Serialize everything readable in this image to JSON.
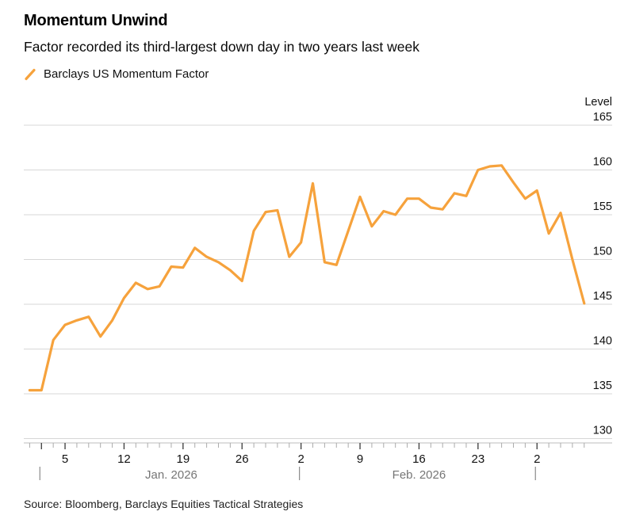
{
  "header": {
    "title": "Momentum Unwind",
    "subtitle": "Factor recorded its third-largest down day in two years last week",
    "legend": {
      "icon": "slash-icon",
      "label": "Barclays US Momentum Factor",
      "color": "#F6A23C"
    }
  },
  "source": "Source: Bloomberg, Barclays Equities Tactical Strategies",
  "colors": {
    "line": "#F6A23C",
    "gridline": "#D7D7D7",
    "axis_line": "#BDBDBD",
    "minor_tick": "#ABABAB",
    "major_tick": "#3A3A3A",
    "tick_label": "#111111",
    "month_label": "#767676",
    "month_separator": "#8A8A8A"
  },
  "chart_data": {
    "type": "line",
    "title": "Momentum Unwind",
    "subtitle": "Factor recorded its third-largest down day in two years last week",
    "ylabel": "Level",
    "ylim": [
      130,
      165
    ],
    "yticks": [
      165,
      160,
      155,
      150,
      145,
      140,
      135,
      130
    ],
    "grid": true,
    "legend_position": "top-left",
    "x_axis": {
      "unit": "weekdays, evenly spaced",
      "major_ticks": [
        {
          "index": 3,
          "label": "5"
        },
        {
          "index": 8,
          "label": "12"
        },
        {
          "index": 13,
          "label": "19"
        },
        {
          "index": 18,
          "label": "26"
        },
        {
          "index": 23,
          "label": "2"
        },
        {
          "index": 28,
          "label": "9"
        },
        {
          "index": 33,
          "label": "16"
        },
        {
          "index": 38,
          "label": "23"
        },
        {
          "index": 43,
          "label": "2"
        }
      ],
      "extra_major_tick_indices": [
        1
      ],
      "month_separators": [
        {
          "index": 1,
          "label": "Jan. 2026"
        },
        {
          "index": 23,
          "label": "Feb. 2026"
        },
        {
          "index": 43,
          "label": ""
        }
      ]
    },
    "series": [
      {
        "name": "Barclays US Momentum Factor",
        "color": "#F6A23C",
        "dates": [
          "Dec 31",
          "Jan 1",
          "Jan 2",
          "Jan 5",
          "Jan 6",
          "Jan 7",
          "Jan 8",
          "Jan 9",
          "Jan 12",
          "Jan 13",
          "Jan 14",
          "Jan 15",
          "Jan 16",
          "Jan 19",
          "Jan 20",
          "Jan 21",
          "Jan 22",
          "Jan 23",
          "Jan 26",
          "Jan 27",
          "Jan 28",
          "Jan 29",
          "Jan 30",
          "Feb 2",
          "Feb 3",
          "Feb 4",
          "Feb 5",
          "Feb 6",
          "Feb 9",
          "Feb 10",
          "Feb 11",
          "Feb 12",
          "Feb 13",
          "Feb 16",
          "Feb 17",
          "Feb 18",
          "Feb 19",
          "Feb 20",
          "Feb 23",
          "Feb 24",
          "Feb 25",
          "Feb 26",
          "Feb 27",
          "Mar 2",
          "Mar 3",
          "Mar 4",
          "Mar 5",
          "Mar 6"
        ],
        "values": [
          135.4,
          135.4,
          141.0,
          142.7,
          143.2,
          143.6,
          141.4,
          143.2,
          145.7,
          147.4,
          146.7,
          147.0,
          149.2,
          149.1,
          151.3,
          150.3,
          149.7,
          148.8,
          147.6,
          153.2,
          155.3,
          155.5,
          150.3,
          151.9,
          158.5,
          149.7,
          149.4,
          153.2,
          157.0,
          153.7,
          155.4,
          155.0,
          156.8,
          156.8,
          155.8,
          155.6,
          157.4,
          157.1,
          160.0,
          160.4,
          160.5,
          158.6,
          156.8,
          157.7,
          152.9,
          155.2,
          150.0,
          145.1
        ]
      }
    ]
  }
}
